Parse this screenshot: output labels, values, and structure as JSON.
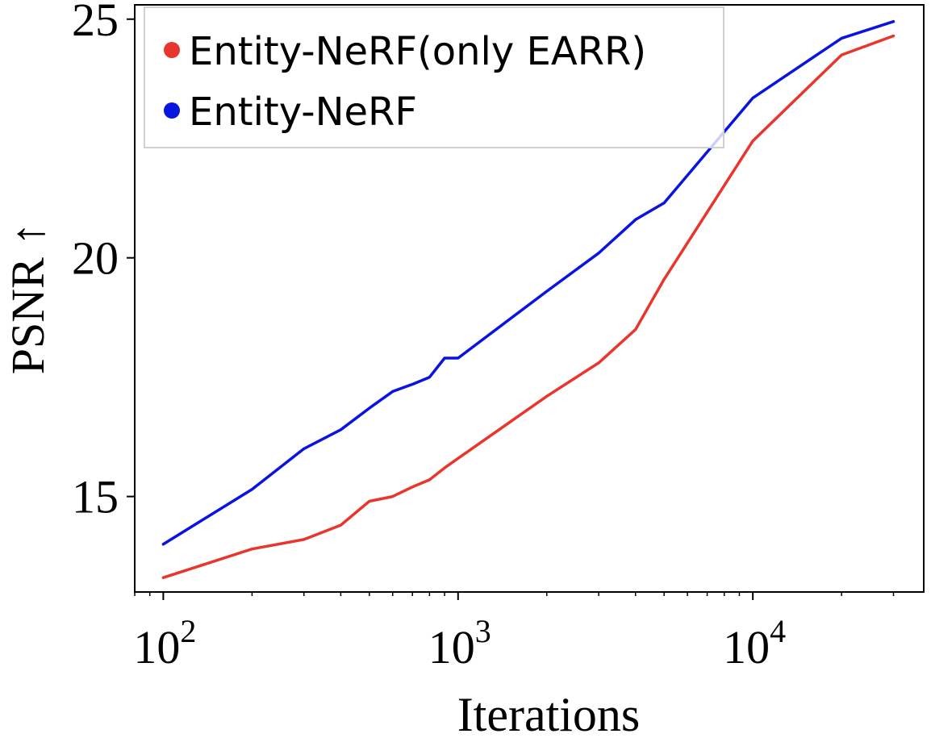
{
  "chart_data": {
    "type": "line",
    "x_scale": "log",
    "xlabel": "Iterations",
    "ylabel": "PSNR ↑",
    "xlim": [
      80,
      38000
    ],
    "ylim": [
      13.0,
      25.3
    ],
    "x_ticks": [
      {
        "value": 100,
        "base": "10",
        "exp": "2"
      },
      {
        "value": 1000,
        "base": "10",
        "exp": "3"
      },
      {
        "value": 10000,
        "base": "10",
        "exp": "4"
      }
    ],
    "y_ticks": [
      15,
      20,
      25
    ],
    "legend": {
      "location": "top-left"
    },
    "series": [
      {
        "name": "Entity-NeRF(only EARR)",
        "color": "#e8362d",
        "x": [
          100,
          200,
          300,
          400,
          500,
          600,
          700,
          800,
          900,
          1000,
          2000,
          3000,
          4000,
          5000,
          10000,
          20000,
          30000
        ],
        "y": [
          13.3,
          13.9,
          14.1,
          14.4,
          14.9,
          15.0,
          15.2,
          15.35,
          15.6,
          15.8,
          17.1,
          17.8,
          18.5,
          19.55,
          22.45,
          24.25,
          24.65
        ]
      },
      {
        "name": "Entity-NeRF",
        "color": "#0a14e0",
        "x": [
          100,
          200,
          300,
          400,
          500,
          600,
          700,
          800,
          900,
          1000,
          2000,
          3000,
          4000,
          5000,
          10000,
          20000,
          30000
        ],
        "y": [
          14.0,
          15.15,
          16.0,
          16.4,
          16.85,
          17.2,
          17.35,
          17.5,
          17.9,
          17.9,
          19.3,
          20.1,
          20.8,
          21.15,
          23.35,
          24.6,
          24.95
        ]
      }
    ]
  }
}
